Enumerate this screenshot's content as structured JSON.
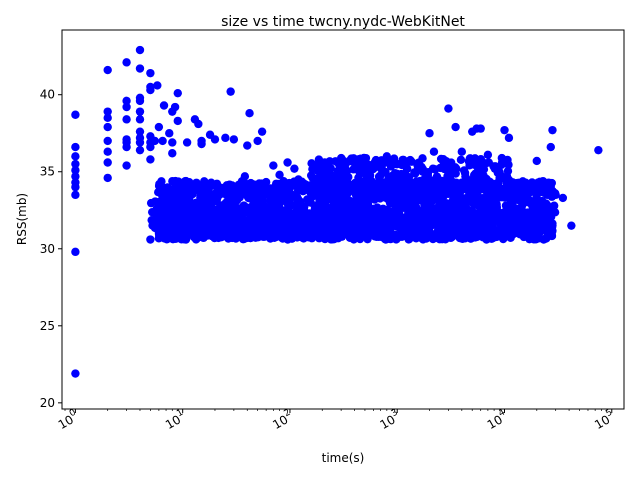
{
  "chart_data": {
    "type": "scatter",
    "title": "size vs time twcny.nydc-WebKitNet",
    "xlabel": "time(s)",
    "ylabel": "RSS(mb)",
    "xscale": "log",
    "xlim": [
      0.75,
      130000
    ],
    "ylim": [
      19.6,
      44.2
    ],
    "x_tick_exponents": [
      0,
      1,
      2,
      3,
      4,
      5
    ],
    "x_tick_base": "10",
    "y_ticks": [
      20,
      25,
      30,
      35,
      40
    ],
    "grid": false,
    "legend": "none",
    "marker_color": "#0000ff",
    "series": [
      {
        "points": [
          [
            1,
            21.9
          ],
          [
            1,
            29.8
          ],
          [
            1,
            33.5
          ],
          [
            1,
            34.0
          ],
          [
            1,
            34.3
          ],
          [
            1,
            34.7
          ],
          [
            1,
            35.1
          ],
          [
            1,
            35.5
          ],
          [
            1,
            36.0
          ],
          [
            1,
            36.6
          ],
          [
            1,
            38.7
          ],
          [
            2,
            34.6
          ],
          [
            2,
            35.6
          ],
          [
            2,
            36.3
          ],
          [
            2,
            37.0
          ],
          [
            2,
            37.9
          ],
          [
            2,
            38.5
          ],
          [
            2,
            38.9
          ],
          [
            2,
            41.6
          ],
          [
            3,
            35.4
          ],
          [
            3,
            36.6
          ],
          [
            3,
            36.9
          ],
          [
            3,
            37.1
          ],
          [
            3,
            38.4
          ],
          [
            3,
            39.2
          ],
          [
            3,
            39.6
          ],
          [
            3,
            42.1
          ],
          [
            4,
            36.4
          ],
          [
            4,
            36.9
          ],
          [
            4,
            37.2
          ],
          [
            4,
            37.6
          ],
          [
            4,
            38.4
          ],
          [
            4,
            38.9
          ],
          [
            4,
            39.6
          ],
          [
            4,
            39.8
          ],
          [
            4,
            41.7
          ],
          [
            4,
            42.9
          ],
          [
            5,
            30.6
          ],
          [
            5,
            35.8
          ],
          [
            5,
            36.6
          ],
          [
            5,
            36.9
          ],
          [
            5,
            37.3
          ],
          [
            5,
            40.3
          ],
          [
            5,
            40.5
          ],
          [
            5,
            41.4
          ],
          [
            5.5,
            37.0
          ],
          [
            5.8,
            40.6
          ],
          [
            6,
            31.2
          ],
          [
            6,
            37.9
          ],
          [
            6.5,
            37.0
          ],
          [
            6.7,
            39.3
          ],
          [
            7,
            31.0
          ],
          [
            7,
            33.1
          ],
          [
            7.5,
            37.5
          ],
          [
            8,
            36.2
          ],
          [
            8,
            36.9
          ],
          [
            8,
            33.6
          ],
          [
            8,
            38.9
          ],
          [
            8.5,
            39.2
          ],
          [
            9,
            38.3
          ],
          [
            9,
            40.1
          ],
          [
            10,
            34.1
          ],
          [
            10,
            32.3
          ],
          [
            11,
            36.9
          ],
          [
            12,
            33.5
          ],
          [
            13,
            38.4
          ],
          [
            14,
            38.1
          ],
          [
            15,
            37.0
          ],
          [
            15,
            36.8
          ],
          [
            18,
            37.4
          ],
          [
            20,
            37.1
          ],
          [
            25,
            37.2
          ],
          [
            28,
            40.2
          ],
          [
            30,
            37.1
          ],
          [
            38,
            34.7
          ],
          [
            40,
            36.7
          ],
          [
            42,
            38.8
          ],
          [
            50,
            37.0
          ],
          [
            55,
            37.6
          ],
          [
            70,
            35.4
          ],
          [
            80,
            34.8
          ],
          [
            95,
            35.6
          ],
          [
            110,
            35.2
          ],
          [
            120,
            34.5
          ],
          [
            200,
            35.5
          ],
          [
            300,
            35.6
          ],
          [
            500,
            35.6
          ],
          [
            800,
            36.0
          ],
          [
            1000,
            35.5
          ],
          [
            2000,
            37.5
          ],
          [
            2200,
            36.3
          ],
          [
            3000,
            39.1
          ],
          [
            3500,
            37.9
          ],
          [
            4000,
            36.3
          ],
          [
            5000,
            37.6
          ],
          [
            5500,
            37.8
          ],
          [
            6000,
            37.8
          ],
          [
            7000,
            36.1
          ],
          [
            10000,
            37.7
          ],
          [
            11000,
            37.2
          ],
          [
            20000,
            35.7
          ],
          [
            27000,
            36.6
          ],
          [
            28000,
            37.7
          ],
          [
            30000,
            33.5
          ],
          [
            35000,
            33.3
          ],
          [
            42000,
            31.5
          ],
          [
            75000,
            36.4
          ],
          [
            26000,
            32.1
          ],
          [
            25000,
            33.5
          ],
          [
            20000,
            31.6
          ]
        ]
      }
    ],
    "bands": [
      {
        "x_min": 6,
        "x_max": 28000,
        "y_min": 30.6,
        "y_max": 32.4,
        "count": 1400,
        "seed": 11
      },
      {
        "x_min": 6,
        "x_max": 30000,
        "y_min": 32.2,
        "y_max": 34.4,
        "count": 1100,
        "seed": 23
      },
      {
        "x_min": 150,
        "x_max": 12000,
        "y_min": 34.0,
        "y_max": 35.9,
        "count": 260,
        "seed": 37
      },
      {
        "x_min": 5,
        "x_max": 40,
        "y_min": 30.6,
        "y_max": 33.8,
        "count": 150,
        "seed": 53
      }
    ]
  }
}
